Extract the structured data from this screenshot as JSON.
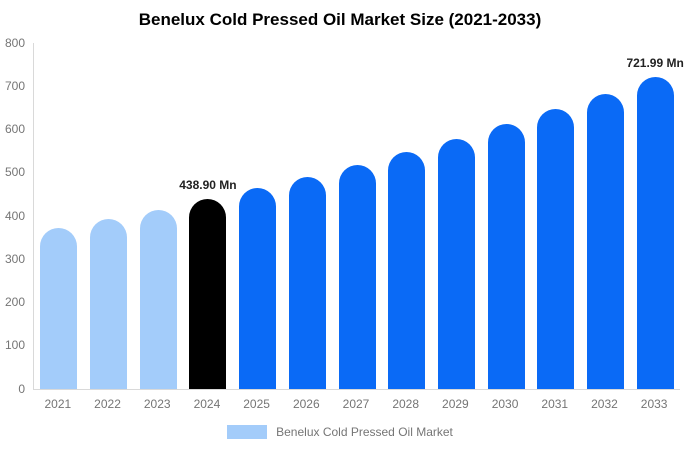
{
  "title": "Benelux Cold Pressed Oil Market Size (2021-2033)",
  "chart_data": {
    "type": "bar",
    "title": "Benelux Cold Pressed Oil Market Size (2021-2033)",
    "categories": [
      "2021",
      "2022",
      "2023",
      "2024",
      "2025",
      "2026",
      "2027",
      "2028",
      "2029",
      "2030",
      "2031",
      "2032",
      "2033"
    ],
    "values": [
      372,
      393,
      415,
      438.9,
      464,
      490,
      518,
      548,
      579,
      612,
      647,
      683,
      721.99
    ],
    "bar_colors": [
      "#a3ccfa",
      "#a3ccfa",
      "#a3ccfa",
      "#000000",
      "#0a6af6",
      "#0a6af6",
      "#0a6af6",
      "#0a6af6",
      "#0a6af6",
      "#0a6af6",
      "#0a6af6",
      "#0a6af6",
      "#0a6af6"
    ],
    "annotations": [
      {
        "category": "2024",
        "text": "438.90 Mn"
      },
      {
        "category": "2033",
        "text": "721.99 Mn"
      }
    ],
    "xlabel": "",
    "ylabel": "",
    "ylim": [
      0,
      800
    ],
    "ytick_interval": 100,
    "grid": false,
    "legend_position": "bottom",
    "legend": [
      {
        "label": "Benelux Cold Pressed Oil Market",
        "color": "#a3ccfa"
      }
    ]
  },
  "colors": {
    "axis_line": "#d9d9d9",
    "tick_label": "#757575",
    "annotation_text": "#222222",
    "title_text": "#000000",
    "historical_bar": "#a3ccfa",
    "base_year_bar": "#000000",
    "forecast_bar": "#0a6af6"
  }
}
